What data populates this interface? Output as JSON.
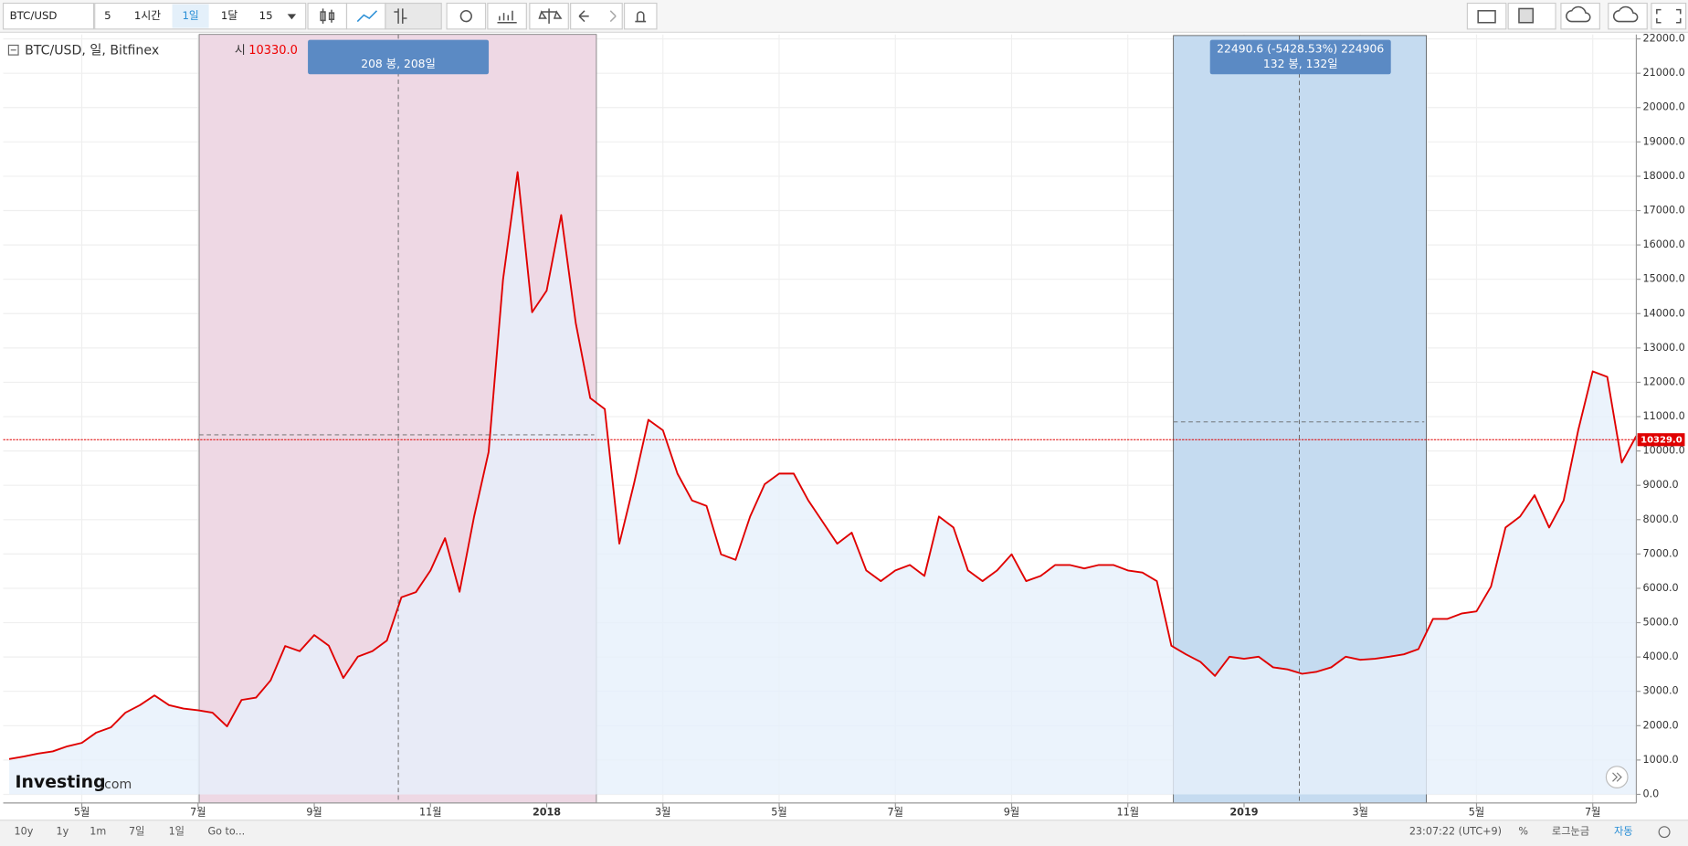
{
  "toolbar": {
    "symbol": "BTC/USD",
    "items": [
      "5",
      "1시간",
      "1일",
      "1달",
      "15"
    ]
  },
  "legend": {
    "title": "BTC/USD, 일, Bitfinex",
    "open_label": "시",
    "open_value": "10330.0"
  },
  "annotations": [
    {
      "lines": [
        "208 봉, 208일"
      ]
    },
    {
      "lines": [
        "22490.6 (-5428.53%) 224906",
        "132 봉, 132일"
      ]
    }
  ],
  "logo": {
    "name": "Investing",
    "suffix": ".com"
  },
  "footer": {
    "ranges": [
      "10y",
      "1y",
      "1m",
      "7일",
      "1일"
    ],
    "goto": "Go to...",
    "time": "23:07:22 (UTC+9)",
    "options": [
      "%",
      "로그눈금",
      "자동"
    ]
  },
  "chart_data": {
    "type": "area",
    "categories": [
      null,
      null,
      null,
      null,
      null,
      "5월",
      null,
      null,
      null,
      null,
      null,
      null,
      null,
      "7월",
      null,
      null,
      null,
      null,
      null,
      null,
      null,
      "9월",
      null,
      null,
      null,
      null,
      null,
      null,
      null,
      "11월",
      null,
      null,
      null,
      null,
      null,
      null,
      null,
      "2018",
      null,
      null,
      null,
      null,
      null,
      null,
      null,
      "3월",
      null,
      null,
      null,
      null,
      null,
      null,
      null,
      "5월",
      null,
      null,
      null,
      null,
      null,
      null,
      null,
      "7월",
      null,
      null,
      null,
      null,
      null,
      null,
      null,
      "9월",
      null,
      null,
      null,
      null,
      null,
      null,
      null,
      "11월",
      null,
      null,
      null,
      null,
      null,
      null,
      null,
      "2019",
      null,
      null,
      null,
      null,
      null,
      null,
      null,
      "3월",
      null,
      null,
      null,
      null,
      null,
      null,
      null,
      "5월",
      null,
      null,
      null,
      null,
      null,
      null,
      null,
      "7월",
      null,
      null,
      null
    ],
    "series": [
      {
        "name": "BTC/USD",
        "color": "#e00000",
        "fill": "#e6f0fb",
        "values": [
          1030,
          1100,
          1190,
          1250,
          1400,
          1500,
          1800,
          1950,
          2380,
          2600,
          2880,
          2600,
          2500,
          2450,
          2380,
          1980,
          2750,
          2820,
          3320,
          4320,
          4170,
          4640,
          4330,
          3390,
          4010,
          4170,
          4480,
          5740,
          5890,
          6520,
          7460,
          5900,
          8090,
          9970,
          15000,
          18120,
          14040,
          14670,
          16870,
          13730,
          11540,
          11220,
          7300,
          9030,
          10910,
          10600,
          9340,
          8560,
          8400,
          6990,
          6830,
          8090,
          9030,
          9340,
          9340,
          8560,
          7930,
          7300,
          7620,
          6520,
          6210,
          6520,
          6680,
          6360,
          8090,
          7770,
          6520,
          6210,
          6520,
          6990,
          6210,
          6360,
          6680,
          6680,
          6580,
          6680,
          6680,
          6520,
          6460,
          6210,
          4330,
          4080,
          3860,
          3450,
          4010,
          3950,
          4010,
          3700,
          3640,
          3510,
          3570,
          3700,
          4010,
          3920,
          3950,
          4010,
          4080,
          4230,
          5110,
          5110,
          5270,
          5330,
          6050,
          7770,
          8090,
          8710,
          7770,
          8560,
          10600,
          12320,
          12160,
          9660,
          10440
        ]
      }
    ],
    "current_price": {
      "value": 10329,
      "label": "10329.0",
      "color": "#e00000"
    },
    "ylim": [
      -250,
      22130
    ],
    "yticks": [
      {
        "value": 0,
        "label": "0.0"
      },
      {
        "value": 1000,
        "label": "1000.0"
      },
      {
        "value": 2000,
        "label": "2000.0"
      },
      {
        "value": 3000,
        "label": "3000.0"
      },
      {
        "value": 4000,
        "label": "4000.0"
      },
      {
        "value": 5000,
        "label": "5000.0"
      },
      {
        "value": 6000,
        "label": "6000.0"
      },
      {
        "value": 7000,
        "label": "7000.0"
      },
      {
        "value": 8000,
        "label": "8000.0"
      },
      {
        "value": 9000,
        "label": "9000.0"
      },
      {
        "value": 10000,
        "label": "10000.0"
      },
      {
        "value": 11000,
        "label": "11000.0"
      },
      {
        "value": 12000,
        "label": "12000.0"
      },
      {
        "value": 13000,
        "label": "13000.0"
      },
      {
        "value": 14000,
        "label": "14000.0"
      },
      {
        "value": 15000,
        "label": "15000.0"
      },
      {
        "value": 16000,
        "label": "16000.0"
      },
      {
        "value": 17000,
        "label": "17000.0"
      },
      {
        "value": 18000,
        "label": "18000.0"
      },
      {
        "value": 19000,
        "label": "19000.0"
      },
      {
        "value": 20000,
        "label": "20000.0"
      },
      {
        "value": 21000,
        "label": "21000.0"
      },
      {
        "value": 22000,
        "label": "22000.0"
      }
    ],
    "grid": true
  }
}
